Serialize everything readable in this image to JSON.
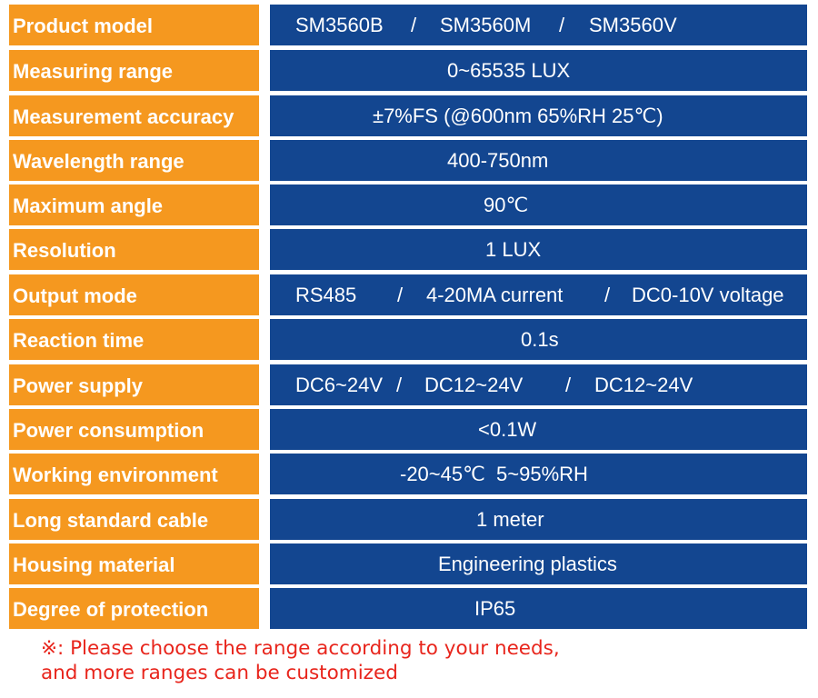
{
  "rows": [
    {
      "label": "Product model",
      "parts": [
        "SM3560B",
        "/",
        "SM3560M",
        "/",
        "SM3560V"
      ]
    },
    {
      "label": "Measuring range",
      "parts": [
        "0~65535 LUX"
      ]
    },
    {
      "label": "Measurement accuracy",
      "parts": [
        "±7%FS (@600nm 65%RH 25℃)"
      ]
    },
    {
      "label": "Wavelength range",
      "parts": [
        "400-750nm"
      ]
    },
    {
      "label": "Maximum angle",
      "parts": [
        "90℃"
      ]
    },
    {
      "label": "Resolution",
      "parts": [
        "1 LUX"
      ]
    },
    {
      "label": "Output mode",
      "parts": [
        "RS485",
        "/",
        "4-20MA current",
        "/",
        "DC0-10V voltage"
      ]
    },
    {
      "label": "Reaction time",
      "parts": [
        "0.1s"
      ]
    },
    {
      "label": "Power supply",
      "parts": [
        "DC6~24V",
        "/",
        "DC12~24V",
        "/",
        "DC12~24V"
      ]
    },
    {
      "label": "Power consumption",
      "parts": [
        "<0.1W"
      ]
    },
    {
      "label": "Working environment",
      "parts": [
        "-20~45℃  5~95%RH"
      ]
    },
    {
      "label": "Long standard cable",
      "parts": [
        "1 meter"
      ]
    },
    {
      "label": "Housing material",
      "parts": [
        "Engineering plastics"
      ]
    },
    {
      "label": "Degree of protection",
      "parts": [
        "IP65"
      ]
    }
  ],
  "note": {
    "line1": "※: Please choose the range according to your needs,",
    "line2": "and more ranges can be customized"
  },
  "colors": {
    "label_bg": "#f5981f",
    "value_bg": "#134690",
    "note": "#e8251c"
  }
}
